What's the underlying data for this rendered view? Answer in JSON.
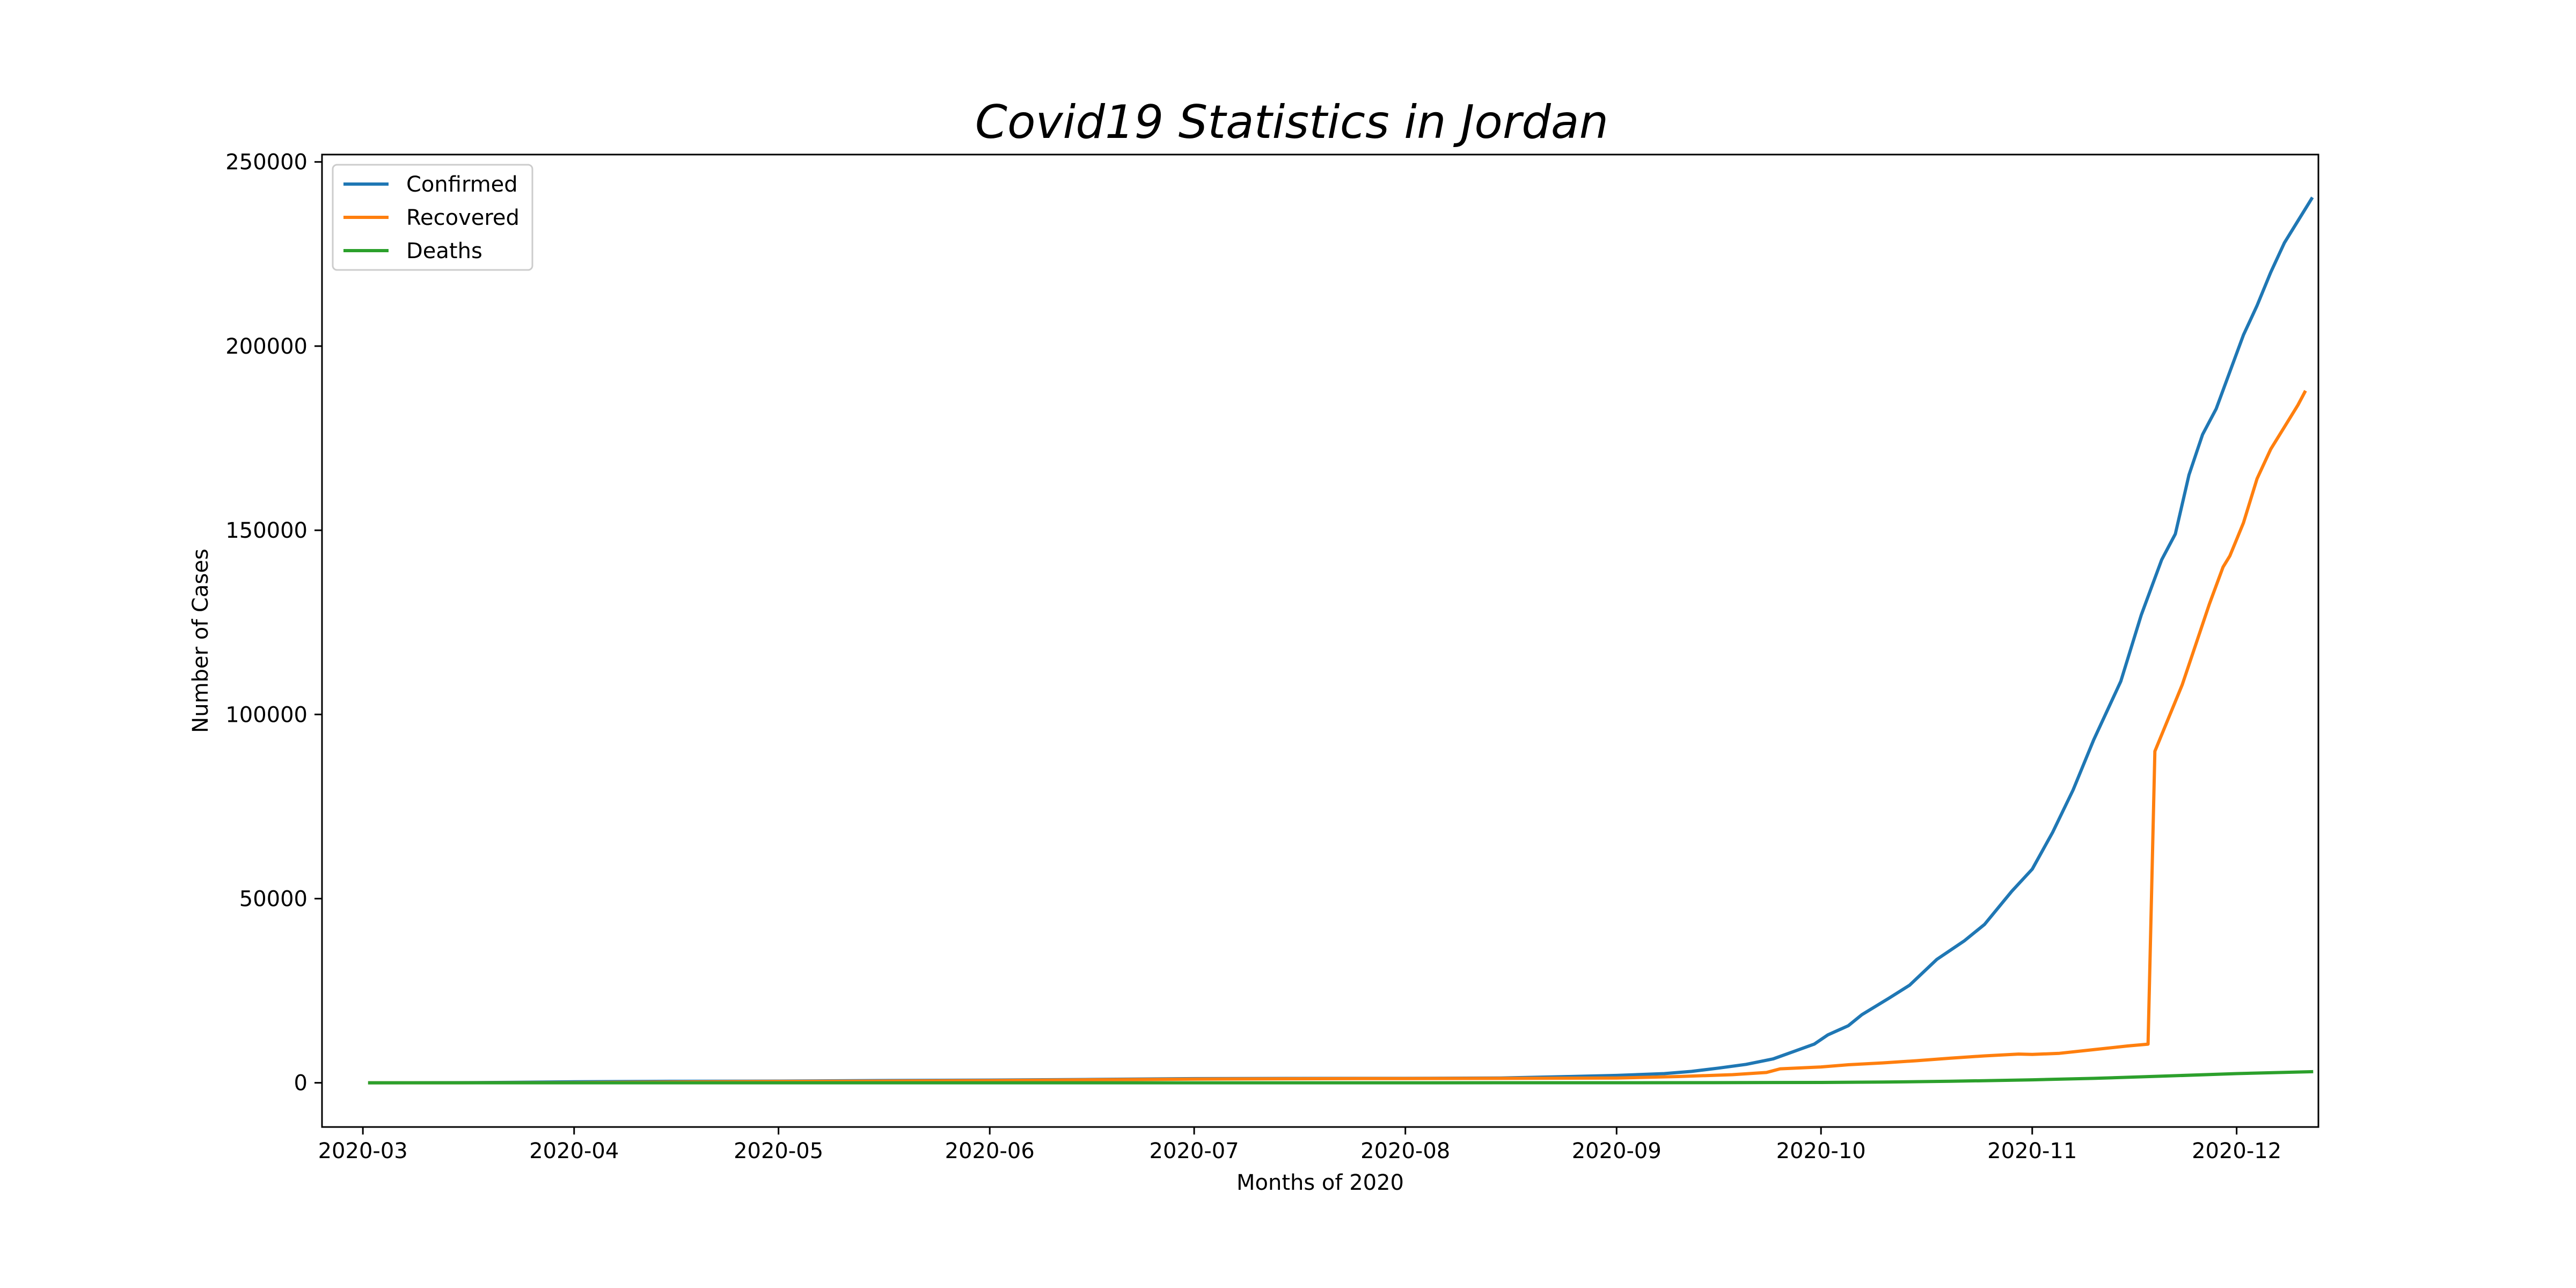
{
  "chart_data": {
    "type": "line",
    "title": "Covid19 Statistics in Jordan",
    "xlabel": "Months of 2020",
    "ylabel": "Number of Cases",
    "x_type": "date",
    "xlim": [
      "2020-02-24",
      "2020-12-13"
    ],
    "ylim": [
      -12000,
      252000
    ],
    "x_ticks": [
      {
        "date": "2020-03-01",
        "label": "2020-03"
      },
      {
        "date": "2020-04-01",
        "label": "2020-04"
      },
      {
        "date": "2020-05-01",
        "label": "2020-05"
      },
      {
        "date": "2020-06-01",
        "label": "2020-06"
      },
      {
        "date": "2020-07-01",
        "label": "2020-07"
      },
      {
        "date": "2020-08-01",
        "label": "2020-08"
      },
      {
        "date": "2020-09-01",
        "label": "2020-09"
      },
      {
        "date": "2020-10-01",
        "label": "2020-10"
      },
      {
        "date": "2020-11-01",
        "label": "2020-11"
      },
      {
        "date": "2020-12-01",
        "label": "2020-12"
      }
    ],
    "y_ticks": [
      {
        "value": 0,
        "label": "0"
      },
      {
        "value": 50000,
        "label": "50000"
      },
      {
        "value": 100000,
        "label": "100000"
      },
      {
        "value": 150000,
        "label": "150000"
      },
      {
        "value": 200000,
        "label": "200000"
      },
      {
        "value": 250000,
        "label": "250000"
      }
    ],
    "grid": false,
    "legend_position": "top-left",
    "series": [
      {
        "name": "Confirmed",
        "color": "#1f77b4",
        "points": [
          [
            "2020-03-02",
            1
          ],
          [
            "2020-03-15",
            35
          ],
          [
            "2020-03-22",
            112
          ],
          [
            "2020-04-01",
            274
          ],
          [
            "2020-04-15",
            397
          ],
          [
            "2020-05-01",
            453
          ],
          [
            "2020-05-15",
            600
          ],
          [
            "2020-06-01",
            739
          ],
          [
            "2020-06-15",
            890
          ],
          [
            "2020-07-01",
            1132
          ],
          [
            "2020-07-15",
            1179
          ],
          [
            "2020-08-01",
            1200
          ],
          [
            "2020-08-15",
            1300
          ],
          [
            "2020-08-25",
            1700
          ],
          [
            "2020-09-01",
            2000
          ],
          [
            "2020-09-08",
            2500
          ],
          [
            "2020-09-12",
            3100
          ],
          [
            "2020-09-16",
            4000
          ],
          [
            "2020-09-20",
            5000
          ],
          [
            "2020-09-24",
            6500
          ],
          [
            "2020-09-27",
            8500
          ],
          [
            "2020-09-30",
            10500
          ],
          [
            "2020-10-02",
            13000
          ],
          [
            "2020-10-05",
            15500
          ],
          [
            "2020-10-07",
            18500
          ],
          [
            "2020-10-11",
            23000
          ],
          [
            "2020-10-14",
            26500
          ],
          [
            "2020-10-18",
            33500
          ],
          [
            "2020-10-22",
            38500
          ],
          [
            "2020-10-25",
            43000
          ],
          [
            "2020-10-29",
            52000
          ],
          [
            "2020-11-01",
            58000
          ],
          [
            "2020-11-04",
            68000
          ],
          [
            "2020-11-07",
            79500
          ],
          [
            "2020-11-10",
            93000
          ],
          [
            "2020-11-14",
            109000
          ],
          [
            "2020-11-17",
            127000
          ],
          [
            "2020-11-20",
            142000
          ],
          [
            "2020-11-22",
            149000
          ],
          [
            "2020-11-24",
            165000
          ],
          [
            "2020-11-26",
            176000
          ],
          [
            "2020-11-28",
            183000
          ],
          [
            "2020-11-30",
            193000
          ],
          [
            "2020-12-02",
            203000
          ],
          [
            "2020-12-04",
            211000
          ],
          [
            "2020-12-06",
            220000
          ],
          [
            "2020-12-08",
            228000
          ],
          [
            "2020-12-10",
            234000
          ],
          [
            "2020-12-12",
            240000
          ]
        ]
      },
      {
        "name": "Recovered",
        "color": "#ff7f0e",
        "points": [
          [
            "2020-03-02",
            0
          ],
          [
            "2020-03-15",
            1
          ],
          [
            "2020-03-25",
            30
          ],
          [
            "2020-04-01",
            50
          ],
          [
            "2020-04-15",
            200
          ],
          [
            "2020-05-01",
            370
          ],
          [
            "2020-05-15",
            450
          ],
          [
            "2020-06-01",
            600
          ],
          [
            "2020-06-15",
            800
          ],
          [
            "2020-07-01",
            1000
          ],
          [
            "2020-07-15",
            1100
          ],
          [
            "2020-07-26",
            1150
          ],
          [
            "2020-08-01",
            1150
          ],
          [
            "2020-08-15",
            1200
          ],
          [
            "2020-09-01",
            1300
          ],
          [
            "2020-09-10",
            1700
          ],
          [
            "2020-09-18",
            2200
          ],
          [
            "2020-09-23",
            2800
          ],
          [
            "2020-09-25",
            3800
          ],
          [
            "2020-10-01",
            4300
          ],
          [
            "2020-10-05",
            4900
          ],
          [
            "2020-10-10",
            5400
          ],
          [
            "2020-10-15",
            6000
          ],
          [
            "2020-10-20",
            6700
          ],
          [
            "2020-10-25",
            7300
          ],
          [
            "2020-10-30",
            7800
          ],
          [
            "2020-11-01",
            7700
          ],
          [
            "2020-11-05",
            8000
          ],
          [
            "2020-11-10",
            9000
          ],
          [
            "2020-11-15",
            10000
          ],
          [
            "2020-11-18",
            10500
          ],
          [
            "2020-11-19",
            90000
          ],
          [
            "2020-11-21",
            99000
          ],
          [
            "2020-11-23",
            108000
          ],
          [
            "2020-11-25",
            119000
          ],
          [
            "2020-11-27",
            130000
          ],
          [
            "2020-11-29",
            140000
          ],
          [
            "2020-11-30",
            143000
          ],
          [
            "2020-12-02",
            152000
          ],
          [
            "2020-12-04",
            164000
          ],
          [
            "2020-12-06",
            172000
          ],
          [
            "2020-12-08",
            178000
          ],
          [
            "2020-12-10",
            184000
          ],
          [
            "2020-12-11",
            187500
          ]
        ]
      },
      {
        "name": "Deaths",
        "color": "#2ca02c",
        "points": [
          [
            "2020-03-02",
            0
          ],
          [
            "2020-04-01",
            5
          ],
          [
            "2020-05-01",
            9
          ],
          [
            "2020-06-01",
            9
          ],
          [
            "2020-07-01",
            10
          ],
          [
            "2020-08-01",
            11
          ],
          [
            "2020-09-01",
            15
          ],
          [
            "2020-09-15",
            30
          ],
          [
            "2020-10-01",
            100
          ],
          [
            "2020-10-10",
            200
          ],
          [
            "2020-10-20",
            420
          ],
          [
            "2020-11-01",
            800
          ],
          [
            "2020-11-10",
            1200
          ],
          [
            "2020-11-20",
            1800
          ],
          [
            "2020-12-01",
            2500
          ],
          [
            "2020-12-12",
            3000
          ]
        ]
      }
    ]
  }
}
